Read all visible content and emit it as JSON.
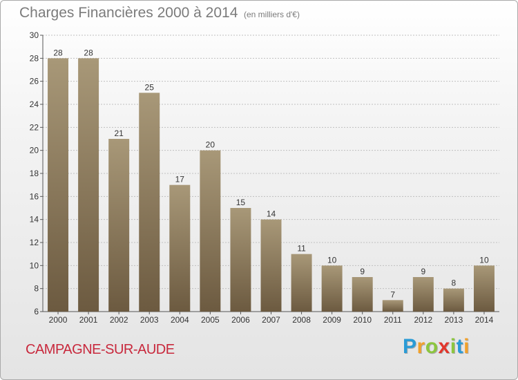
{
  "title": "Charges Financières 2000 à 2014",
  "subtitle": "(en milliers d'€)",
  "location": "CAMPAGNE-SUR-AUDE",
  "brand": {
    "letters": [
      "P",
      "r",
      "o",
      "x",
      "i",
      "t",
      "i"
    ],
    "colors": [
      "#2a9bd6",
      "#f2a12a",
      "#8cc63f",
      "#e2362c",
      "#8cc63f",
      "#2a9bd6",
      "#f2a12a"
    ]
  },
  "colors": {
    "bar_top": "#a89878",
    "bar_bottom": "#6c5a40",
    "grid": "#bfbfbf",
    "axis_text": "#333333",
    "title_text": "#7b7b7b",
    "location_text": "#c8283c"
  },
  "chart_data": {
    "type": "bar",
    "categories": [
      "2000",
      "2001",
      "2002",
      "2003",
      "2004",
      "2005",
      "2006",
      "2007",
      "2008",
      "2009",
      "2010",
      "2011",
      "2012",
      "2013",
      "2014"
    ],
    "values": [
      28,
      28,
      21,
      25,
      17,
      20,
      15,
      14,
      11,
      10,
      9,
      7,
      9,
      8,
      10
    ],
    "ylim": [
      6,
      30
    ],
    "yticks": [
      6,
      8,
      10,
      12,
      14,
      16,
      18,
      20,
      22,
      24,
      26,
      28,
      30
    ],
    "grid": true,
    "data_labels": true
  }
}
